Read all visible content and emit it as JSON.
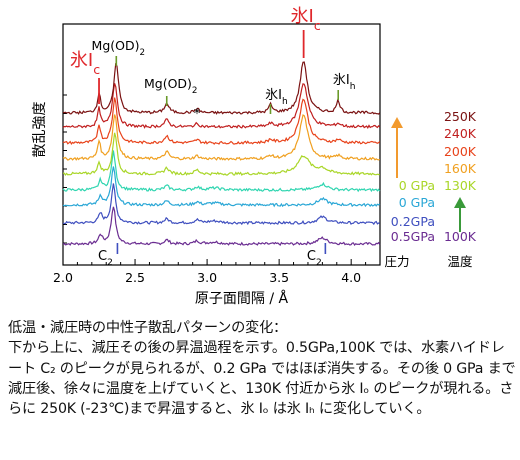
{
  "chart_data": {
    "type": "line",
    "xlabel": "原子面間隔 / Å",
    "ylabel": "散乱強度",
    "xlim": [
      2.0,
      4.2
    ],
    "xticks": [
      2.0,
      2.5,
      3.0,
      3.5,
      4.0
    ],
    "xtick_labels": [
      "2.0",
      "2.5",
      "3.0",
      "3.5",
      "4.0"
    ],
    "series": [
      {
        "pressure": "0.5GPa",
        "temperature": "100K",
        "color": "#6a2c91",
        "profile": "C2"
      },
      {
        "pressure": "0.2GPa",
        "temperature": "",
        "color": "#3f4fbf",
        "profile": "C2"
      },
      {
        "pressure": "0 GPa",
        "temperature": "",
        "color": "#2aa7d6",
        "profile": "C2"
      },
      {
        "pressure": "",
        "temperature": "",
        "color": "#2fd5b0",
        "profile": "C2"
      },
      {
        "pressure": "0 GPa",
        "temperature": "130K",
        "color": "#a9d628",
        "profile": "C2+Mg"
      },
      {
        "pressure": "",
        "temperature": "160K",
        "color": "#f0a020",
        "profile": "Ic"
      },
      {
        "pressure": "",
        "temperature": "200K",
        "color": "#e8431b",
        "profile": "Ic"
      },
      {
        "pressure": "",
        "temperature": "240K",
        "color": "#c01f1f",
        "profile": "Ic"
      },
      {
        "pressure": "",
        "temperature": "250K",
        "color": "#7a1212",
        "profile": "Ih"
      }
    ],
    "annotations": {
      "ice_ic_left": {
        "main": "氷",
        "roman": "I",
        "sub": "c",
        "x": 2.25
      },
      "ice_ic_right": {
        "main": "氷",
        "roman": "I",
        "sub": "c",
        "x": 3.67
      },
      "mgod2_left": {
        "text": "Mg(OD)",
        "sub": "2",
        "x": 2.37
      },
      "mgod2_mid": {
        "text": "Mg(OD)",
        "sub": "2",
        "x": 2.72
      },
      "asterisk": {
        "text": "*",
        "x": 2.93
      },
      "ice_ih_mid": {
        "main": "氷",
        "roman": "I",
        "sub": "h",
        "x": 3.44
      },
      "ice_ih_right": {
        "main": "氷",
        "roman": "I",
        "sub": "h",
        "x": 3.91
      },
      "c2_left": {
        "text": "C",
        "sub": "2",
        "x": 2.35
      },
      "c2_right": {
        "text": "C",
        "sub": "2",
        "x": 3.8
      }
    },
    "legend": {
      "pressure_header": "圧力",
      "temperature_header": "温度"
    }
  },
  "caption": {
    "title": "低温・減圧時の中性子散乱パターンの変化：",
    "body": "下から上に、減圧その後の昇温過程を示す。0.5GPa,100K では、水素ハイドレート C₂ のピークが見られるが、0.2 GPa ではほぼ消失する。その後 0 GPa まで減圧後、徐々に温度を上げていくと、130K 付近から氷 Iₒ のピークが現れる。さらに 250K (-23℃)まで昇温すると、氷 Iₒ は氷 Iₕ に変化していく。"
  },
  "colors": {
    "arrow_orange": "#f29a2e",
    "arrow_green": "#3a9a3a",
    "ice_red": "#e0272b",
    "tick_green": "#6a9a2a"
  }
}
